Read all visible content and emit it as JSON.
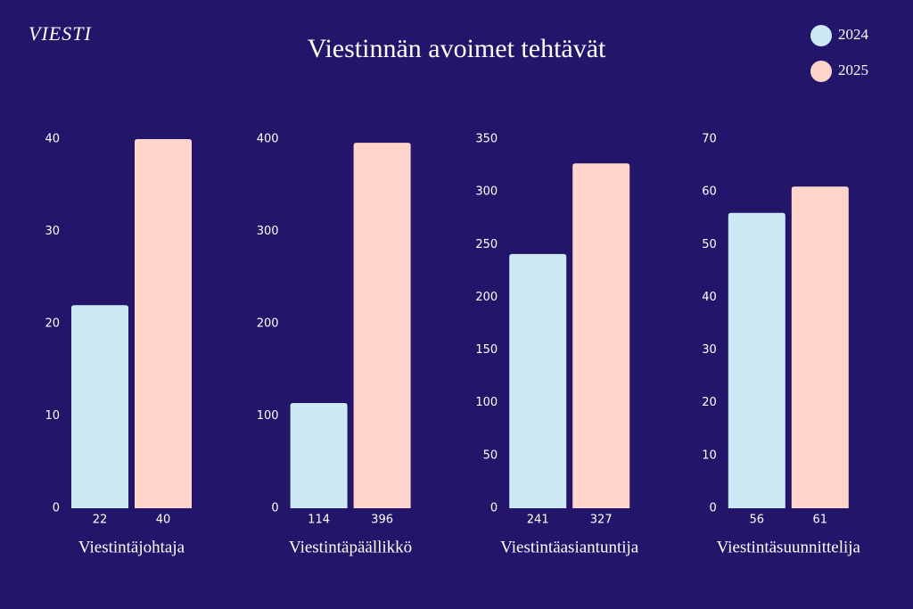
{
  "brand": "VIESTI",
  "title": "Viestinnän avoimet tehtävät",
  "chart_data": [
    {
      "type": "bar",
      "xlabel": "Viestintäjohtaja",
      "series": [
        {
          "name": "2024",
          "color": "#cde9f5",
          "values": [
            22
          ]
        },
        {
          "name": "2025",
          "color": "#ffd5cb",
          "values": [
            40
          ]
        }
      ],
      "ylim": [
        0,
        40
      ],
      "yticks": [
        0,
        10,
        20,
        30,
        40
      ]
    },
    {
      "type": "bar",
      "xlabel": "Viestintäpäällikkö",
      "series": [
        {
          "name": "2024",
          "color": "#cde9f5",
          "values": [
            114
          ]
        },
        {
          "name": "2025",
          "color": "#ffd5cb",
          "values": [
            396
          ]
        }
      ],
      "ylim": [
        0,
        400
      ],
      "yticks": [
        0,
        100,
        200,
        300,
        400
      ]
    },
    {
      "type": "bar",
      "xlabel": "Viestintäasiantuntija",
      "series": [
        {
          "name": "2024",
          "color": "#cde9f5",
          "values": [
            241
          ]
        },
        {
          "name": "2025",
          "color": "#ffd5cb",
          "values": [
            327
          ]
        }
      ],
      "ylim": [
        0,
        350
      ],
      "yticks": [
        0,
        50,
        100,
        150,
        200,
        250,
        300,
        350
      ]
    },
    {
      "type": "bar",
      "xlabel": "Viestintäsuunnittelija",
      "series": [
        {
          "name": "2024",
          "color": "#cde9f5",
          "values": [
            56
          ]
        },
        {
          "name": "2025",
          "color": "#ffd5cb",
          "values": [
            61
          ]
        }
      ],
      "ylim": [
        0,
        70
      ],
      "yticks": [
        0,
        10,
        20,
        30,
        40,
        50,
        60,
        70
      ]
    }
  ]
}
